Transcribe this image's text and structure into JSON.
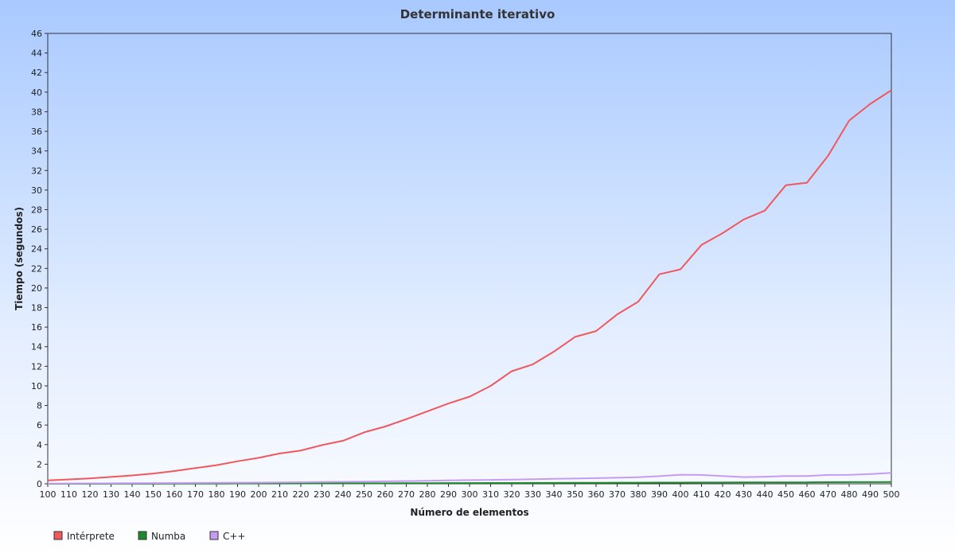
{
  "chart_data": {
    "type": "line",
    "title": "Determinante iterativo",
    "xlabel": "Número de elementos",
    "ylabel": "Tiempo (segundos)",
    "xlim": [
      100,
      500
    ],
    "ylim": [
      0,
      46
    ],
    "x_ticks": [
      100,
      110,
      120,
      130,
      140,
      150,
      160,
      170,
      180,
      190,
      200,
      210,
      220,
      230,
      240,
      250,
      260,
      270,
      280,
      290,
      300,
      310,
      320,
      330,
      340,
      350,
      360,
      370,
      380,
      390,
      400,
      410,
      420,
      430,
      440,
      450,
      460,
      470,
      480,
      490,
      500
    ],
    "y_ticks": [
      0,
      2,
      4,
      6,
      8,
      10,
      12,
      14,
      16,
      18,
      20,
      22,
      24,
      26,
      28,
      30,
      32,
      34,
      36,
      38,
      40,
      42,
      44,
      46
    ],
    "grid": false,
    "legend_position": "bottom-left",
    "x": [
      100,
      110,
      120,
      130,
      140,
      150,
      160,
      170,
      180,
      190,
      200,
      210,
      220,
      230,
      240,
      250,
      260,
      270,
      280,
      290,
      300,
      310,
      320,
      330,
      340,
      350,
      360,
      370,
      380,
      390,
      400,
      410,
      420,
      430,
      440,
      450,
      460,
      470,
      480,
      490,
      500
    ],
    "series": [
      {
        "name": "Intérprete",
        "color": "#f0585e",
        "values": [
          0.35,
          0.45,
          0.55,
          0.7,
          0.85,
          1.05,
          1.3,
          1.6,
          1.9,
          2.3,
          2.65,
          3.1,
          3.4,
          3.95,
          4.4,
          5.25,
          5.85,
          6.6,
          7.4,
          8.2,
          8.9,
          10.0,
          11.5,
          12.2,
          13.5,
          15.0,
          15.6,
          17.3,
          18.6,
          21.4,
          21.9,
          24.4,
          25.6,
          27.0,
          27.9,
          30.5,
          30.75,
          33.5,
          37.1,
          38.8,
          40.2
        ]
      },
      {
        "name": "Numba",
        "color": "#1f8a2c",
        "values": [
          0.0,
          0.0,
          0.0,
          0.01,
          0.01,
          0.01,
          0.02,
          0.02,
          0.02,
          0.03,
          0.03,
          0.03,
          0.04,
          0.04,
          0.05,
          0.05,
          0.05,
          0.06,
          0.06,
          0.07,
          0.07,
          0.08,
          0.08,
          0.09,
          0.09,
          0.1,
          0.1,
          0.11,
          0.11,
          0.12,
          0.12,
          0.13,
          0.13,
          0.14,
          0.14,
          0.15,
          0.15,
          0.16,
          0.17,
          0.17,
          0.18
        ]
      },
      {
        "name": "C++",
        "color": "#c69cf2",
        "values": [
          0.02,
          0.03,
          0.04,
          0.05,
          0.06,
          0.07,
          0.08,
          0.09,
          0.1,
          0.11,
          0.12,
          0.14,
          0.16,
          0.18,
          0.2,
          0.22,
          0.25,
          0.28,
          0.31,
          0.34,
          0.37,
          0.4,
          0.43,
          0.46,
          0.5,
          0.54,
          0.58,
          0.62,
          0.67,
          0.78,
          0.93,
          0.9,
          0.8,
          0.68,
          0.72,
          0.8,
          0.8,
          0.9,
          0.92,
          1.0,
          1.12
        ]
      }
    ]
  }
}
